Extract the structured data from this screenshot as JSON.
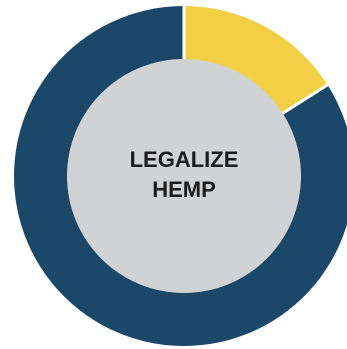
{
  "chart_data": {
    "type": "pie",
    "variant": "donut",
    "center_label_lines": [
      "LEGALIZE",
      "HEMP"
    ],
    "slices": [
      {
        "value": 16,
        "color": "#f2cf45"
      },
      {
        "value": 84,
        "color": "#1b4769"
      }
    ],
    "start_angle_deg": 0,
    "direction": "clockwise",
    "center_fill": "#d1d2d4",
    "separator_color": "#ffffff",
    "legend": "none"
  }
}
